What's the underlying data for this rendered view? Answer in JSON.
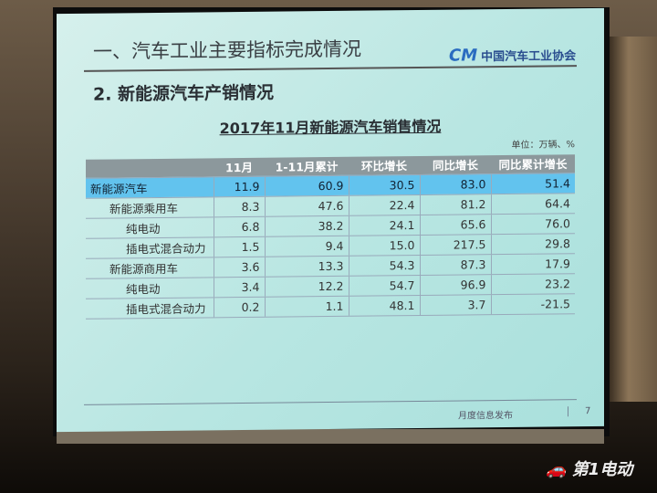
{
  "slide": {
    "heading": "一、汽车工业主要指标完成情况",
    "subheading": "2. 新能源汽车产销情况",
    "logo_text": "中国汽车工业协会",
    "table_title": "2017年11月新能源汽车销售情况",
    "unit": "单位：万辆、%",
    "columns": [
      "",
      "11月",
      "1-11月累计",
      "环比增长",
      "同比增长",
      "同比累计增长"
    ],
    "rows": [
      {
        "label": "新能源汽车",
        "values": [
          "11.9",
          "60.9",
          "30.5",
          "83.0",
          "51.4"
        ]
      },
      {
        "label": "新能源乘用车",
        "values": [
          "8.3",
          "47.6",
          "22.4",
          "81.2",
          "64.4"
        ]
      },
      {
        "label": "纯电动",
        "values": [
          "6.8",
          "38.2",
          "24.1",
          "65.6",
          "76.0"
        ]
      },
      {
        "label": "插电式混合动力",
        "values": [
          "1.5",
          "9.4",
          "15.0",
          "217.5",
          "29.8"
        ]
      },
      {
        "label": "新能源商用车",
        "values": [
          "3.6",
          "13.3",
          "54.3",
          "87.3",
          "17.9"
        ]
      },
      {
        "label": "纯电动",
        "values": [
          "3.4",
          "12.2",
          "54.7",
          "96.9",
          "23.2"
        ]
      },
      {
        "label": "插电式混合动力",
        "values": [
          "0.2",
          "1.1",
          "48.1",
          "3.7",
          "-21.5"
        ]
      }
    ],
    "footer": "月度信息发布",
    "page": "7",
    "highlight_color": "#62c3ee"
  },
  "watermark": "第1电动"
}
